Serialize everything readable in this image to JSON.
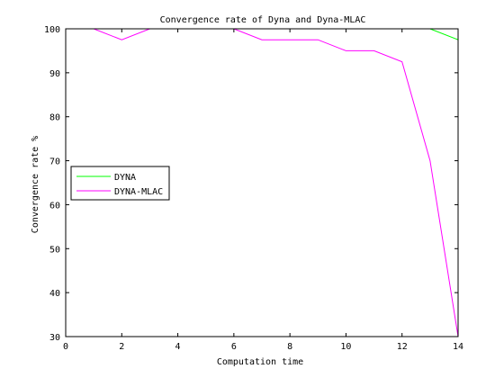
{
  "chart_data": {
    "type": "line",
    "title": "Convergence rate of Dyna and Dyna-MLAC",
    "xlabel": "Computation time",
    "ylabel": "Convergence rate %",
    "xlim": [
      0,
      14
    ],
    "ylim": [
      30,
      100
    ],
    "xticks": [
      0,
      2,
      4,
      6,
      8,
      10,
      12,
      14
    ],
    "yticks": [
      30,
      40,
      50,
      60,
      70,
      80,
      90,
      100
    ],
    "xtick_labels": [
      "0",
      "2",
      "4",
      "6",
      "8",
      "10",
      "12",
      "14"
    ],
    "ytick_labels": [
      "30",
      "40",
      "50",
      "60",
      "70",
      "80",
      "90",
      "100"
    ],
    "grid": false,
    "legend_position": "middle-left",
    "series": [
      {
        "name": "DYNA",
        "color": "#00ff00",
        "x": [
          1,
          2,
          3,
          4,
          5,
          6,
          7,
          8,
          9,
          10,
          11,
          12,
          13,
          14
        ],
        "y": [
          100,
          100,
          100,
          100,
          100,
          100,
          100,
          100,
          100,
          100,
          100,
          100,
          100,
          97.5
        ]
      },
      {
        "name": "DYNA-MLAC",
        "color": "#ff00ff",
        "x": [
          1,
          2,
          3,
          4,
          5,
          6,
          7,
          8,
          9,
          10,
          11,
          12,
          13,
          14
        ],
        "y": [
          100,
          97.5,
          100,
          100,
          100,
          100,
          97.5,
          97.5,
          97.5,
          95,
          95,
          92.5,
          70,
          30
        ]
      }
    ]
  }
}
